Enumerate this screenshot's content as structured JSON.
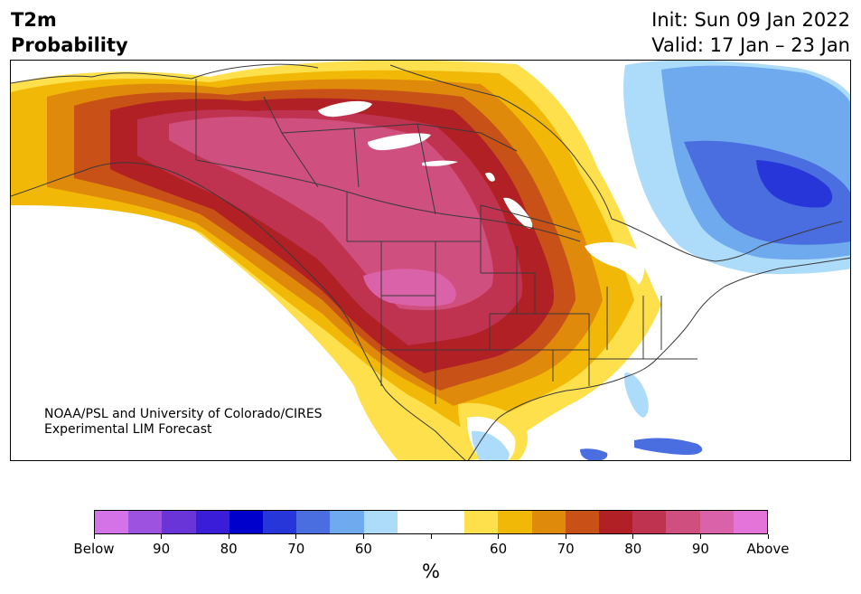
{
  "header": {
    "title_line1": "T2m",
    "title_line2": "Probability",
    "init": "Init: Sun 09 Jan 2022",
    "valid": "Valid: 17 Jan – 23 Jan"
  },
  "map": {
    "credit_line1": "NOAA/PSL and University of Colorado/CIRES",
    "credit_line2": "Experimental LIM Forecast"
  },
  "colorbar": {
    "unit": "%",
    "colors": [
      "#d473e8",
      "#9d53e0",
      "#6a35d8",
      "#3a1dd6",
      "#0000cc",
      "#2636d9",
      "#4a6de0",
      "#6fa9ee",
      "#addcfa",
      "#ffffff",
      "#ffffff",
      "#fde04b",
      "#f2b807",
      "#e08a0c",
      "#c75117",
      "#b12024",
      "#bf3350",
      "#cf4f7e",
      "#da62a8",
      "#e574d8"
    ],
    "tick_labels": [
      {
        "label": "Below"
      },
      {
        "label": "90"
      },
      {
        "label": "80"
      },
      {
        "label": "70"
      },
      {
        "label": "60"
      },
      {
        "label": ""
      },
      {
        "label": "60"
      },
      {
        "label": "70"
      },
      {
        "label": "80"
      },
      {
        "label": "90"
      },
      {
        "label": "Above"
      }
    ]
  }
}
